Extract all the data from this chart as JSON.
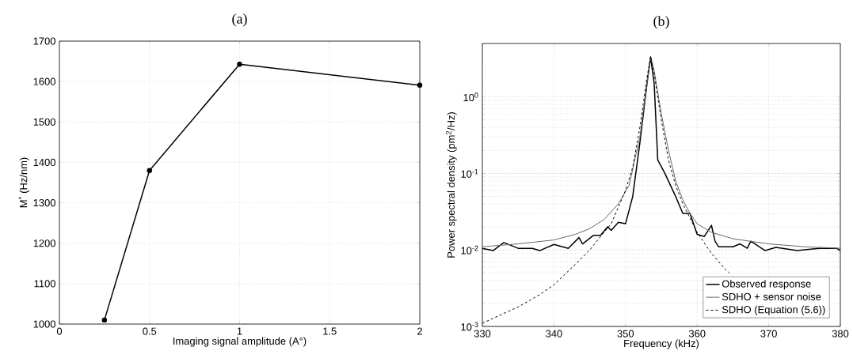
{
  "chart_data": [
    {
      "type": "line",
      "title": "(a)",
      "xlabel": "Imaging signal amplitude (A°)",
      "ylabel": "M$^{*}$ (Hz/nm)",
      "x": [
        0.25,
        0.5,
        1,
        2
      ],
      "series": [
        {
          "color": "#000000",
          "values": [
            1010,
            1380,
            1643,
            1591
          ]
        }
      ],
      "xlim": [
        0,
        2
      ],
      "xticks": [
        0,
        0.5,
        1,
        1.5,
        2
      ],
      "ylim": [
        1000,
        1700
      ],
      "yticks": [
        1000,
        1100,
        1200,
        1300,
        1400,
        1500,
        1600,
        1700
      ],
      "grid": true,
      "marker": "circle",
      "line_style": "solid"
    },
    {
      "type": "line",
      "title": "(b)",
      "xlabel": "Frequency (kHz)",
      "ylabel": "Power spectral density (pm$^{2}$/Hz)",
      "series": [
        {
          "name": "Observed response",
          "color": "#000000",
          "line_style": "solid",
          "x": [
            330,
            331.5,
            333,
            335,
            337,
            338,
            340,
            342,
            343.5,
            344,
            345.5,
            346.5,
            347.5,
            348,
            349,
            350,
            351,
            352,
            353,
            353.5,
            354,
            354.5,
            355.5,
            357,
            358,
            359,
            360,
            361,
            362,
            362.5,
            363,
            365,
            366,
            367,
            367.5,
            369.5,
            371,
            374,
            377,
            379.5,
            380
          ],
          "values": [
            0.0105,
            0.0098,
            0.0125,
            0.0105,
            0.0105,
            0.0098,
            0.0118,
            0.0105,
            0.0145,
            0.012,
            0.0155,
            0.0155,
            0.02,
            0.018,
            0.023,
            0.022,
            0.05,
            0.25,
            1.5,
            3.3,
            1.5,
            0.15,
            0.1,
            0.05,
            0.03,
            0.03,
            0.016,
            0.015,
            0.021,
            0.013,
            0.011,
            0.011,
            0.012,
            0.0105,
            0.013,
            0.0098,
            0.0108,
            0.0098,
            0.0105,
            0.0105,
            0.0098
          ]
        },
        {
          "name": "SDHO + sensor noise",
          "color": "#666666",
          "line_style": "solid",
          "x": [
            330,
            335,
            340,
            343,
            345,
            347,
            349,
            350.5,
            352,
            353,
            353.5,
            354,
            355,
            356,
            357,
            358,
            359,
            360,
            362,
            365,
            370,
            375,
            380
          ],
          "values": [
            0.011,
            0.012,
            0.0135,
            0.016,
            0.019,
            0.025,
            0.04,
            0.07,
            0.3,
            1.5,
            3.4,
            2.2,
            0.6,
            0.2,
            0.08,
            0.045,
            0.03,
            0.022,
            0.017,
            0.014,
            0.012,
            0.011,
            0.0105
          ]
        },
        {
          "name": "SDHO (Equation (5.6))",
          "color": "#000000",
          "line_style": "dashed",
          "x": [
            330,
            335,
            338,
            340,
            343,
            345,
            347,
            348,
            350,
            351,
            352,
            353,
            353.5,
            354,
            355,
            356,
            357,
            358,
            360,
            362,
            364,
            364.5
          ],
          "values": [
            0.0011,
            0.0018,
            0.0026,
            0.0035,
            0.0065,
            0.01,
            0.017,
            0.022,
            0.06,
            0.12,
            0.4,
            1.8,
            3.4,
            2,
            0.5,
            0.15,
            0.07,
            0.04,
            0.017,
            0.009,
            0.0055,
            0.005
          ]
        }
      ],
      "xlim": [
        330,
        380
      ],
      "xticks": [
        330,
        340,
        350,
        360,
        370,
        380
      ],
      "ylim": [
        0.001,
        5
      ],
      "log": "y",
      "yticks": [
        {
          "value": 0.001,
          "label": "10$^{-3}$"
        },
        {
          "value": 0.01,
          "label": "10$^{-2}$"
        },
        {
          "value": 0.1,
          "label": "10$^{-1}$"
        },
        {
          "value": 1,
          "label": "10$^{0}$"
        }
      ],
      "grid": true,
      "legend": "bottom right",
      "marker": "none"
    }
  ]
}
